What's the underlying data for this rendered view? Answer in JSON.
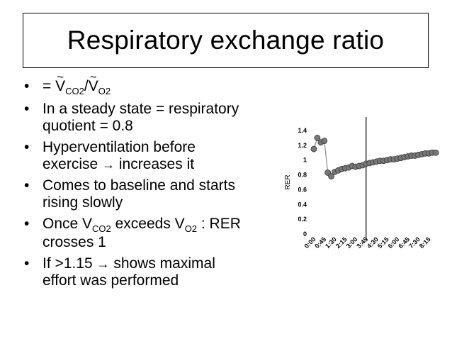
{
  "slide": {
    "title": "Respiratory exchange ratio"
  },
  "bullets": {
    "dot": "•",
    "b1": {
      "eq": "= ",
      "v1": "V",
      "s1": "CO2",
      "slash": "/",
      "v2": "V",
      "s2": "O2",
      "tilde": "~"
    },
    "b2": {
      "l1": "In a steady state = respiratory",
      "l2": "quotient = 0.8"
    },
    "b3": {
      "l1": "Hyperventilation before",
      "l2a": "exercise ",
      "arrow": "→",
      "l2b": " increases it"
    },
    "b4": {
      "l1": "Comes to baseline and starts",
      "l2": "rising slowly"
    },
    "b5": {
      "a": "Once V",
      "s1": "CO2",
      "b": " exceeds V",
      "s2": "O2",
      "c": " : RER",
      "l2": "crosses 1"
    },
    "b6": {
      "a": "If >1.15 ",
      "arrow": "→",
      "b": " shows maximal",
      "l2": "effort was performed"
    }
  },
  "chart_data": {
    "type": "scatter",
    "ylabel": "RER",
    "xlabel": "",
    "ylim": [
      0,
      1.4
    ],
    "yticks": [
      0,
      0.2,
      0.4,
      0.6,
      0.8,
      1,
      1.2,
      1.4
    ],
    "ytick_labels": [
      "0",
      "0.2",
      "0.4",
      "0.6",
      "0.8",
      "1",
      "1.2",
      "1.4"
    ],
    "xticks": [
      "0:00",
      "0:45",
      "1:30",
      "2:15",
      "3:00",
      "3:45",
      "4:30",
      "5:15",
      "6:00",
      "6:45",
      "7:30",
      "8:15"
    ],
    "x_seconds": [
      0,
      15,
      30,
      45,
      60,
      75,
      90,
      105,
      120,
      135,
      150,
      165,
      180,
      195,
      210,
      225,
      240,
      255,
      270,
      285,
      300,
      315,
      330,
      345,
      360,
      375,
      390,
      405,
      420,
      435,
      450,
      465,
      480,
      495,
      510,
      525
    ],
    "values": [
      1.15,
      1.3,
      1.24,
      1.26,
      0.83,
      0.78,
      0.84,
      0.86,
      0.88,
      0.89,
      0.9,
      0.92,
      0.91,
      0.92,
      0.93,
      0.95,
      0.96,
      0.97,
      0.98,
      0.99,
      0.99,
      1.0,
      1.01,
      1.01,
      1.02,
      1.03,
      1.04,
      1.05,
      1.06,
      1.06,
      1.07,
      1.08,
      1.09,
      1.09,
      1.1,
      1.1
    ],
    "vline_x": "3:45",
    "colors": {
      "marker": "#777777",
      "marker_edge": "#3a3a3a",
      "line": "#8a8a8a",
      "vline": "#000000"
    }
  }
}
